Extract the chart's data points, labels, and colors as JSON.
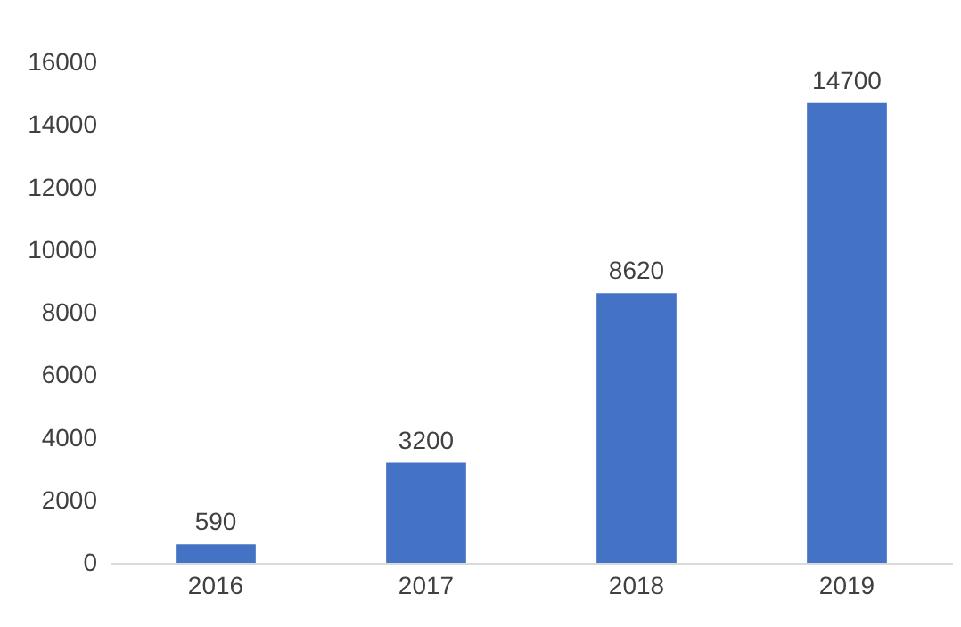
{
  "chart_data": {
    "type": "bar",
    "categories": [
      "2016",
      "2017",
      "2018",
      "2019"
    ],
    "values": [
      590,
      3200,
      8620,
      14700
    ],
    "color": "#4472c4",
    "ylim": [
      0,
      16000
    ],
    "yticks": [
      0,
      2000,
      4000,
      6000,
      8000,
      10000,
      12000,
      14000,
      16000
    ],
    "grid": false,
    "data_labels": true
  }
}
